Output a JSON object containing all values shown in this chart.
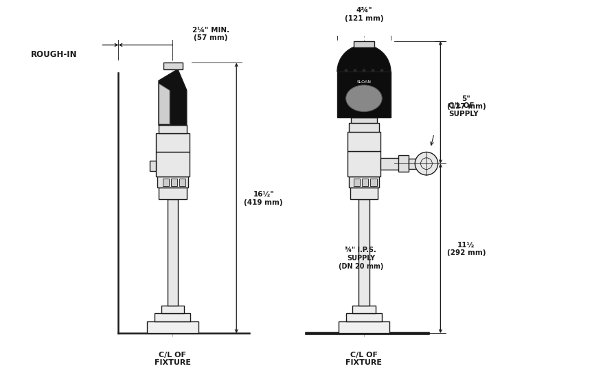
{
  "title": "ROUGH-IN",
  "bg_color": "#ffffff",
  "line_color": "#1a1a1a",
  "dim_color": "#1a1a1a",
  "label_color": "#1a1a1a",
  "title_fontsize": 8.5,
  "label_fontsize": 7.5,
  "dim_fontsize": 7.5,
  "left_fixture_label": "C/L OF\nFIXTURE",
  "right_fixture_label": "C/L OF\nFIXTURE",
  "dim_width_left": "2¼\" MIN.\n(57 mm)",
  "dim_width_right": "4¾\"\n(121 mm)",
  "dim_height_left": "16½\"\n(419 mm)",
  "dim_height_right_top": "5\"\n(127 mm)",
  "dim_height_right_bot": "11½\n(292 mm)",
  "supply_label": "C/L OF\nSUPPLY",
  "pipe_label": "¾\" I.P.S.\nSUPPLY\n(DN 20 mm)"
}
